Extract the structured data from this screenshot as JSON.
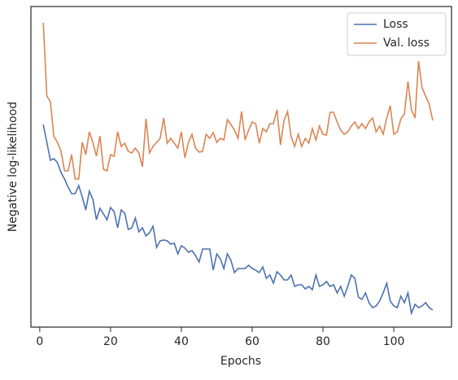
{
  "chart_data": {
    "type": "line",
    "xlabel": "Epochs",
    "ylabel": "Negative log-likelihood",
    "x": [
      1,
      2,
      3,
      4,
      5,
      6,
      7,
      8,
      9,
      10,
      11,
      12,
      13,
      14,
      15,
      16,
      17,
      18,
      19,
      20,
      21,
      22,
      23,
      24,
      25,
      26,
      27,
      28,
      29,
      30,
      31,
      32,
      33,
      34,
      35,
      36,
      37,
      38,
      39,
      40,
      41,
      42,
      43,
      44,
      45,
      46,
      47,
      48,
      49,
      50,
      51,
      52,
      53,
      54,
      55,
      56,
      57,
      58,
      59,
      60,
      61,
      62,
      63,
      64,
      65,
      66,
      67,
      68,
      69,
      70,
      71,
      72,
      73,
      74,
      75,
      76,
      77,
      78,
      79,
      80,
      81,
      82,
      83,
      84,
      85,
      86,
      87,
      88,
      89,
      90,
      91,
      92,
      93,
      94,
      95,
      96,
      97,
      98,
      99,
      100,
      101,
      102,
      103,
      104,
      105,
      106,
      107,
      108,
      109,
      110,
      111
    ],
    "series": [
      {
        "name": "Loss",
        "color": "#4c72b0",
        "values": [
          249,
          227,
          205,
          207,
          202,
          190,
          182,
          172,
          164,
          164,
          174,
          160,
          144,
          167,
          157,
          132,
          146,
          139,
          132,
          147,
          142,
          122,
          144,
          140,
          120,
          122,
          134,
          117,
          122,
          112,
          116,
          124,
          98,
          106,
          107,
          106,
          102,
          103,
          90,
          100,
          97,
          92,
          94,
          88,
          80,
          96,
          96,
          96,
          70,
          90,
          84,
          72,
          90,
          82,
          67,
          72,
          72,
          72,
          76,
          72,
          70,
          67,
          74,
          60,
          64,
          54,
          68,
          64,
          58,
          58,
          64,
          50,
          52,
          52,
          47,
          50,
          46,
          64,
          50,
          52,
          56,
          50,
          52,
          42,
          50,
          38,
          50,
          64,
          60,
          37,
          34,
          42,
          30,
          24,
          26,
          32,
          42,
          54,
          32,
          26,
          24,
          38,
          30,
          42,
          17,
          28,
          24,
          26,
          30,
          24,
          21
        ]
      },
      {
        "name": "Val. loss",
        "color": "#dd8452",
        "values": [
          374,
          284,
          277,
          234,
          227,
          216,
          192,
          192,
          212,
          182,
          182,
          227,
          212,
          240,
          227,
          210,
          235,
          194,
          192,
          212,
          210,
          240,
          222,
          226,
          216,
          214,
          220,
          214,
          197,
          256,
          214,
          222,
          227,
          232,
          257,
          226,
          232,
          226,
          220,
          240,
          208,
          227,
          237,
          220,
          215,
          216,
          237,
          232,
          239,
          227,
          232,
          230,
          255,
          249,
          242,
          232,
          265,
          230,
          242,
          252,
          250,
          226,
          244,
          240,
          250,
          250,
          267,
          224,
          254,
          265,
          234,
          222,
          237,
          222,
          232,
          226,
          244,
          230,
          247,
          237,
          236,
          264,
          264,
          252,
          242,
          237,
          240,
          247,
          252,
          244,
          250,
          244,
          252,
          257,
          240,
          247,
          237,
          257,
          272,
          237,
          240,
          256,
          262,
          302,
          267,
          257,
          327,
          294,
          284,
          274,
          254
        ]
      }
    ],
    "xlim": [
      -2.5,
      116.3
    ],
    "xticks": [
      0,
      20,
      40,
      60,
      80,
      100
    ],
    "ylim": [
      0,
      394
    ],
    "legend": "upper right"
  }
}
